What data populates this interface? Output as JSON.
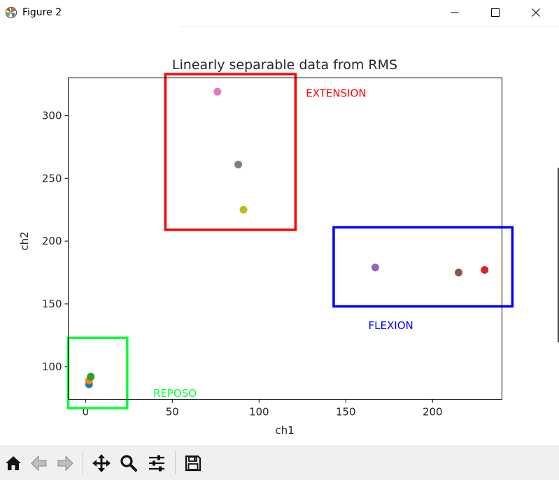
{
  "window": {
    "title": "Figure 2",
    "icons": [
      "matplotlib-icon",
      "minimize-icon",
      "maximize-icon",
      "close-icon"
    ]
  },
  "toolbar": {
    "buttons": [
      "home-icon",
      "back-icon",
      "forward-icon",
      "pan-icon",
      "zoom-icon",
      "configure-subplots-icon",
      "save-icon"
    ]
  },
  "chart_data": {
    "type": "scatter",
    "title": "Linearly separable data from RMS",
    "xlabel": "ch1",
    "ylabel": "ch2",
    "xlim": [
      -10,
      240
    ],
    "ylim": [
      74,
      330
    ],
    "grid": false,
    "xticks": [
      0,
      50,
      100,
      150,
      200
    ],
    "yticks": [
      100,
      150,
      200,
      250,
      300
    ],
    "points": [
      {
        "x": 2,
        "y": 86,
        "color": "#1f77b4"
      },
      {
        "x": 2,
        "y": 89,
        "color": "#ff7f0e"
      },
      {
        "x": 3,
        "y": 92,
        "color": "#2ca02c"
      },
      {
        "x": 230,
        "y": 177,
        "color": "#d62728"
      },
      {
        "x": 167,
        "y": 179,
        "color": "#9467bd"
      },
      {
        "x": 215,
        "y": 175,
        "color": "#8c564b"
      },
      {
        "x": 76,
        "y": 319,
        "color": "#e377c2"
      },
      {
        "x": 88,
        "y": 261,
        "color": "#7f7f7f"
      },
      {
        "x": 91,
        "y": 225,
        "color": "#bcbd22"
      }
    ],
    "annotations": [
      {
        "label": "EXTENSION",
        "color": "#ff0000",
        "box": {
          "x0": 46,
          "x1": 121,
          "y0": 209,
          "y1": 333
        },
        "label_at": {
          "x": 127,
          "y": 315
        }
      },
      {
        "label": "FLEXION",
        "color": "#0000ff",
        "box": {
          "x0": 143,
          "x1": 246,
          "y0": 148,
          "y1": 211
        },
        "label_at": {
          "x": 163,
          "y": 130
        }
      },
      {
        "label": "REPOSO",
        "color": "#00ff33",
        "box": {
          "x0": -10,
          "x1": 24,
          "y0": 67,
          "y1": 123
        },
        "label_at": {
          "x": 39,
          "y": 76
        }
      }
    ]
  }
}
